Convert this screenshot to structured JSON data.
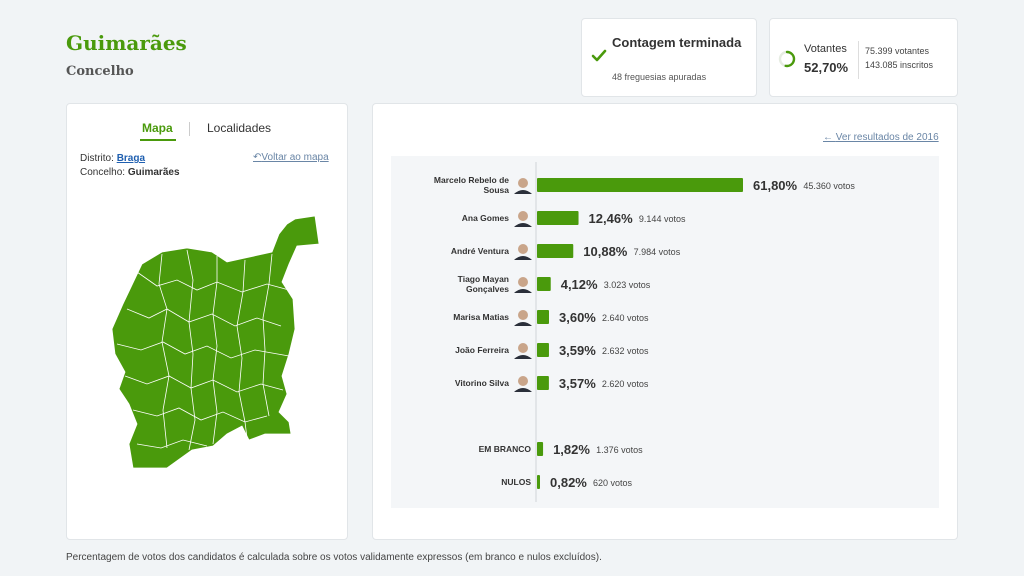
{
  "header": {
    "title": "Guimarães",
    "subtitle": "Concelho"
  },
  "status": {
    "title": "Contagem terminada",
    "subtitle": "48 freguesias apuradas"
  },
  "voters": {
    "label": "Votantes",
    "percent_text": "52,70%",
    "percent": 52.7,
    "count": "75.399 votantes",
    "registered": "143.085 inscritos"
  },
  "map_panel": {
    "tabs": [
      "Mapa",
      "Localidades"
    ],
    "district_label": "Distrito:",
    "district": "Braga",
    "county_label": "Concelho:",
    "county": "Guimarães",
    "back_link": "Voltar ao mapa"
  },
  "results": {
    "prev_link": "Ver resultados de 2016"
  },
  "colors": {
    "accent": "#4a9a0c",
    "map_fill": "#4a9a0c",
    "link": "#1f5fb0"
  },
  "chart_data": {
    "type": "bar",
    "orientation": "horizontal",
    "candidates": [
      {
        "name": "Marcelo Rebelo de Sousa",
        "pct": 61.8,
        "pct_text": "61,80%",
        "votes_text": "45.360 votos",
        "avatar": "portrait-icon"
      },
      {
        "name": "Ana Gomes",
        "pct": 12.46,
        "pct_text": "12,46%",
        "votes_text": "9.144 votos",
        "avatar": "portrait-icon"
      },
      {
        "name": "André Ventura",
        "pct": 10.88,
        "pct_text": "10,88%",
        "votes_text": "7.984 votos",
        "avatar": "portrait-icon"
      },
      {
        "name": "Tiago Mayan Gonçalves",
        "pct": 4.12,
        "pct_text": "4,12%",
        "votes_text": "3.023 votos",
        "avatar": "portrait-icon"
      },
      {
        "name": "Marisa Matias",
        "pct": 3.6,
        "pct_text": "3,60%",
        "votes_text": "2.640 votos",
        "avatar": "portrait-icon"
      },
      {
        "name": "João Ferreira",
        "pct": 3.59,
        "pct_text": "3,59%",
        "votes_text": "2.632 votos",
        "avatar": "portrait-icon"
      },
      {
        "name": "Vitorino Silva",
        "pct": 3.57,
        "pct_text": "3,57%",
        "votes_text": "2.620 votos",
        "avatar": "portrait-icon"
      }
    ],
    "others": [
      {
        "name": "EM BRANCO",
        "pct": 1.82,
        "pct_text": "1,82%",
        "votes_text": "1.376 votos"
      },
      {
        "name": "NULOS",
        "pct": 0.82,
        "pct_text": "0,82%",
        "votes_text": "620 votos"
      }
    ]
  },
  "footnote": "Percentagem de votos dos candidatos é calculada sobre os votos validamente expressos (em branco e nulos excluídos)."
}
